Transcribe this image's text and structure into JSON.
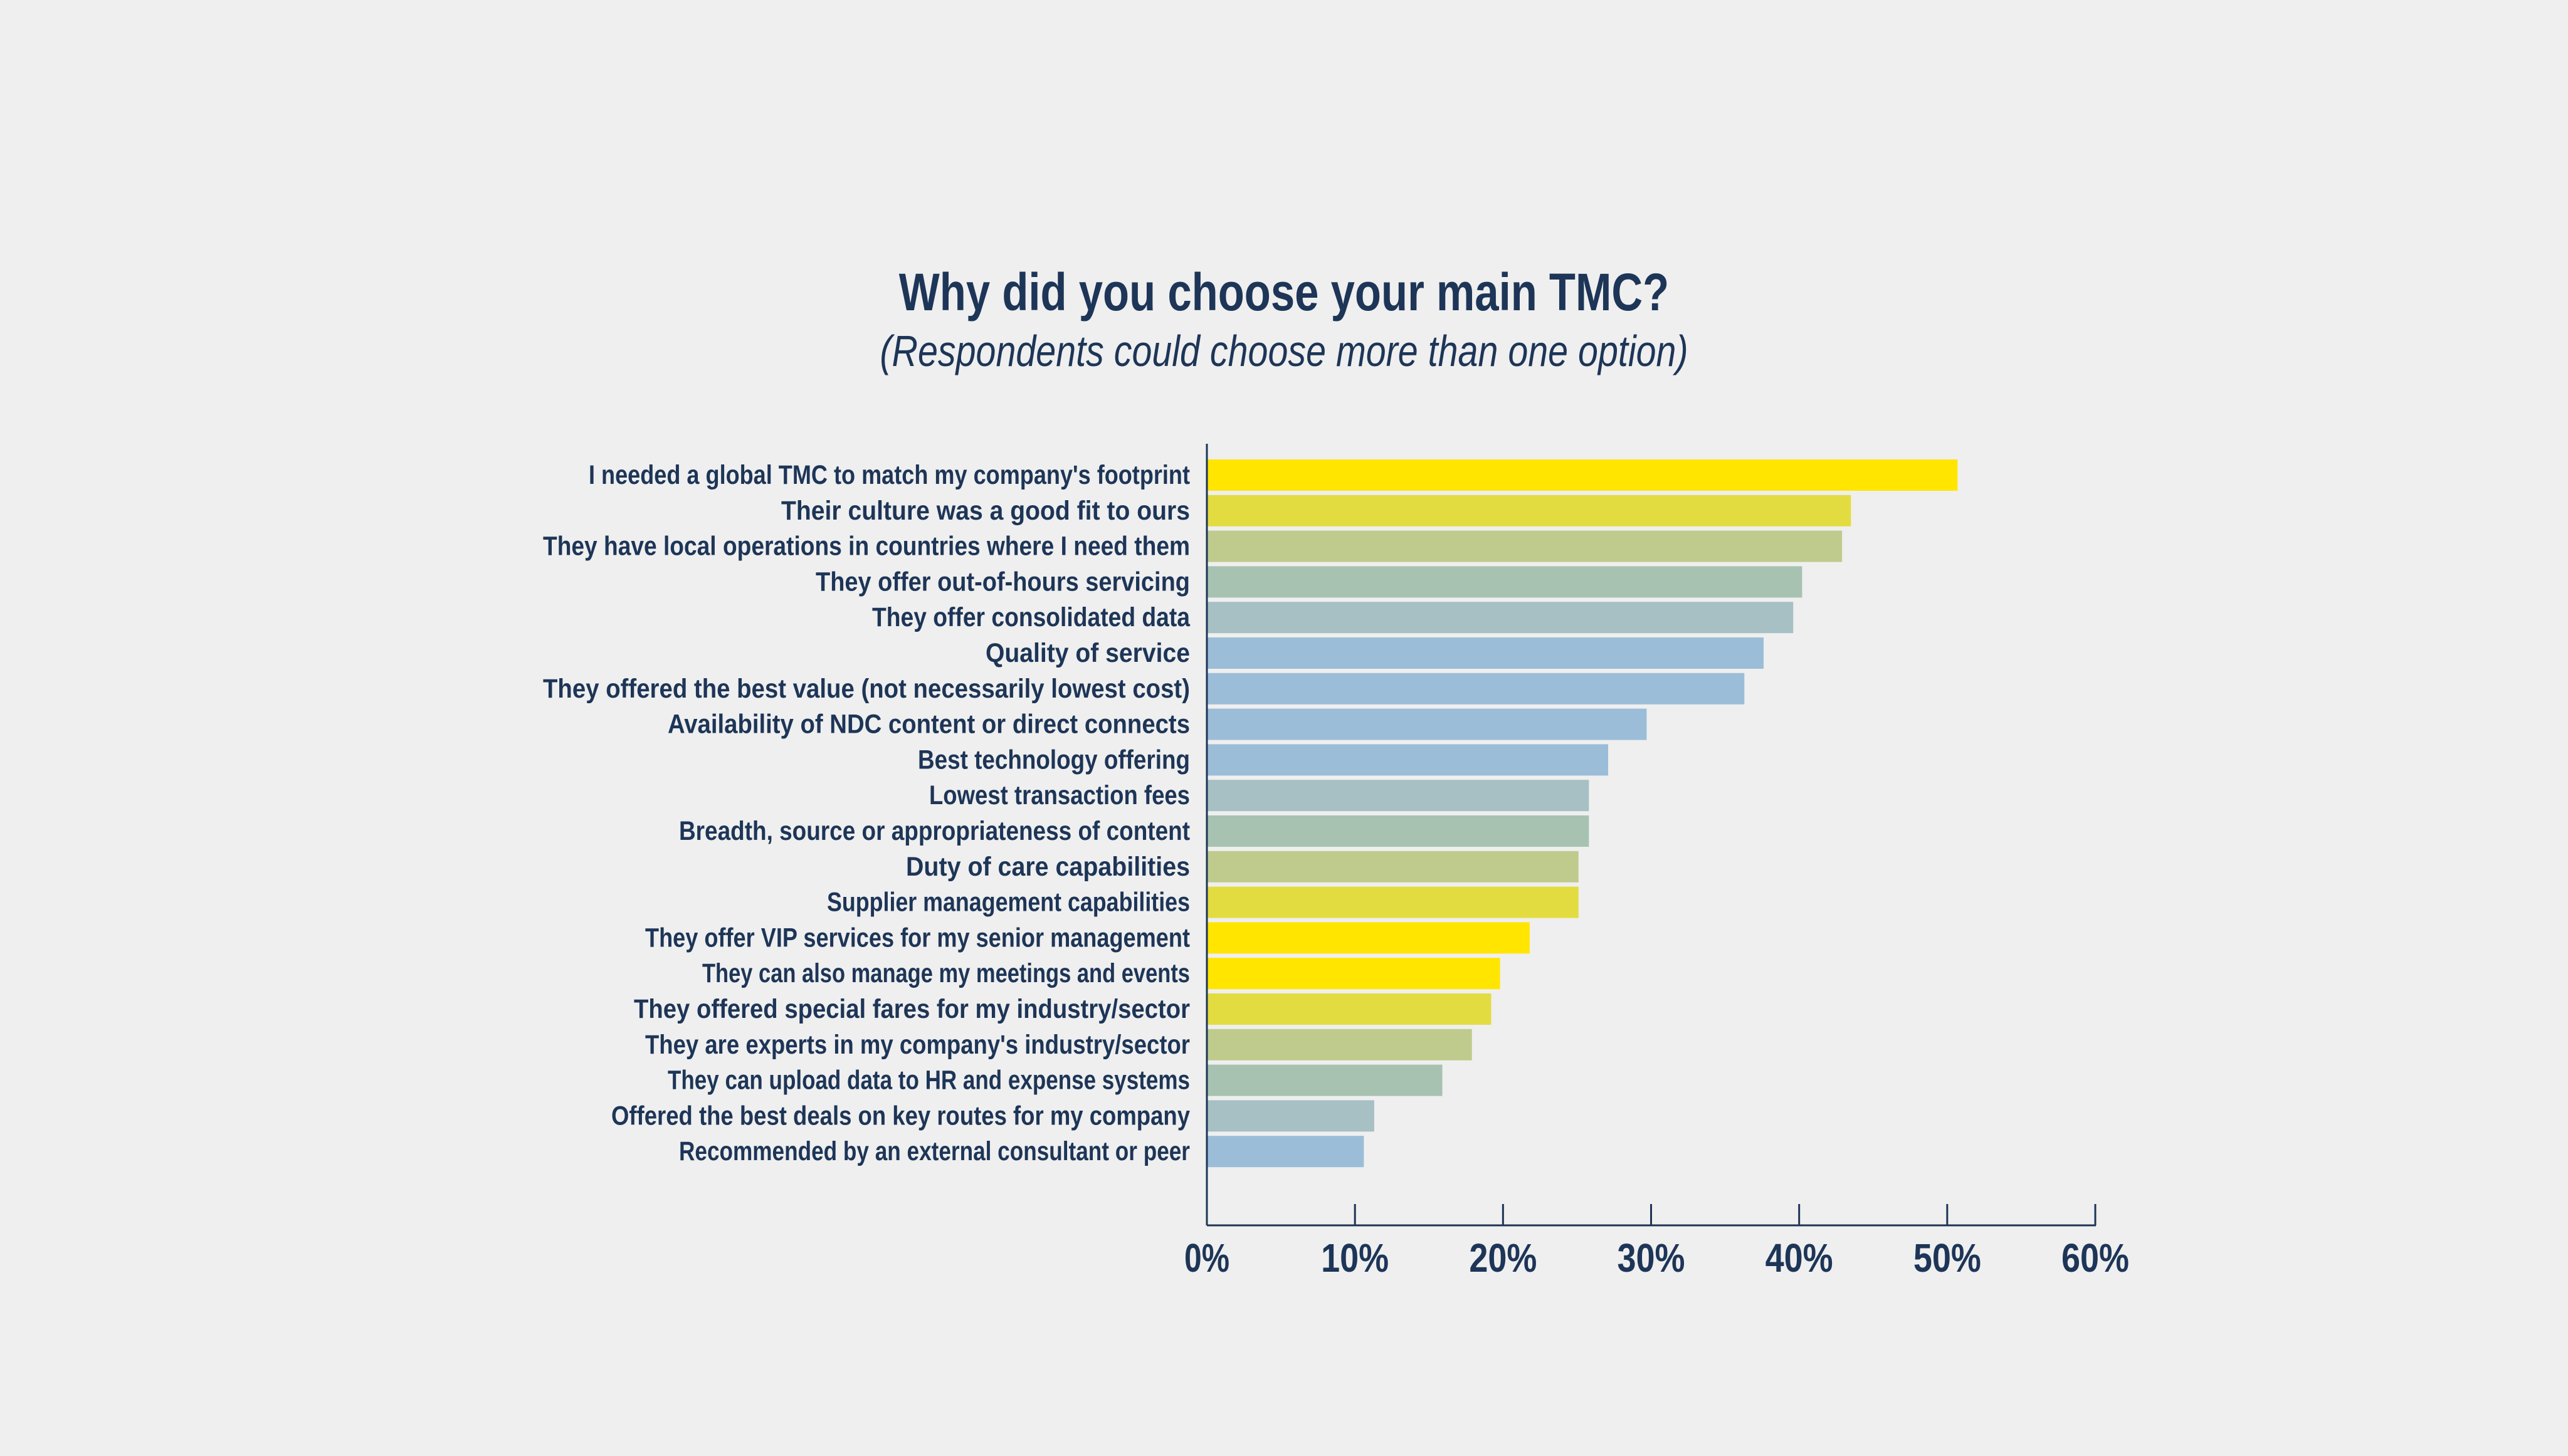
{
  "chart_data": {
    "type": "bar",
    "orientation": "horizontal",
    "title": "Why did you choose your main TMC?",
    "subtitle": "(Respondents could choose more than one option)",
    "categories": [
      "I needed a global TMC to match my company's footprint",
      "Their culture was a good fit to ours",
      "They have local operations in countries where I need them",
      "They offer out-of-hours servicing",
      "They offer consolidated data",
      "Quality of service",
      "They offered the best value (not necessarily lowest cost)",
      "Availability of NDC content or direct connects",
      "Best technology offering",
      "Lowest transaction fees",
      "Breadth, source or appropriateness of content",
      "Duty of care capabilities",
      "Supplier management capabilities",
      "They offer VIP services for my senior management",
      "They can also manage my meetings and events",
      "They offered special fares for my industry/sector",
      "They are experts in my company's industry/sector",
      "They can upload data to HR and expense systems",
      "Offered the best deals on key routes for my company",
      "Recommended by an external consultant or peer"
    ],
    "values": [
      50.7,
      43.5,
      42.9,
      40.2,
      39.6,
      37.6,
      36.3,
      29.7,
      27.1,
      25.8,
      25.8,
      25.1,
      25.1,
      21.8,
      19.8,
      19.2,
      17.9,
      15.9,
      11.3,
      10.6
    ],
    "bar_colors": [
      "#ffe500",
      "#e3dc40",
      "#bfcb8d",
      "#a7c2b1",
      "#a6c0c4",
      "#9bbdd8",
      "#9bbdd8",
      "#9bbdd8",
      "#9bbdd8",
      "#a6c0c4",
      "#a7c2b1",
      "#bfcb8d",
      "#e3dc40",
      "#ffe500",
      "#ffe500",
      "#e3dc40",
      "#bfcb8d",
      "#a7c2b1",
      "#a6c0c4",
      "#9bbdd8"
    ],
    "xlim": [
      0,
      60
    ],
    "x_ticks": [
      "0%",
      "10%",
      "20%",
      "30%",
      "40%",
      "50%",
      "60%"
    ],
    "x_tick_values": [
      0,
      10,
      20,
      30,
      40,
      50,
      60
    ],
    "grid": false,
    "legend": "none",
    "axis_color": "#1d3557",
    "text_color": "#1d3557",
    "background": "#efefef"
  }
}
